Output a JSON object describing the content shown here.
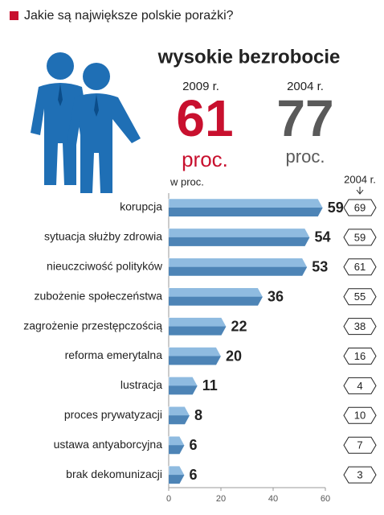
{
  "chart_data": {
    "type": "bar",
    "title": "Jakie są największe polskie porażki?",
    "headline": {
      "title": "wysokie bezrobocie",
      "values": [
        61,
        77
      ],
      "unit": "proc."
    },
    "xlabel": "w proc.",
    "categories": [
      "korupcja",
      "sytuacja służby zdrowia",
      "nieuczciwość polityków",
      "zubożenie społeczeństwa",
      "zagrożenie przestępczością",
      "reforma emerytalna",
      "lustracja",
      "proces prywatyzacji",
      "ustawa antyaborcyjna",
      "brak dekomunizacji"
    ],
    "series": [
      {
        "name": "2009 r.",
        "color": "#8fbbe0",
        "values": [
          59,
          54,
          53,
          36,
          22,
          20,
          11,
          8,
          6,
          6
        ]
      },
      {
        "name": "2004 r.",
        "values": [
          69,
          59,
          61,
          55,
          38,
          16,
          4,
          10,
          7,
          3
        ]
      }
    ],
    "xlim": [
      0,
      60
    ],
    "xticks": [
      0,
      20,
      40,
      60
    ]
  }
}
